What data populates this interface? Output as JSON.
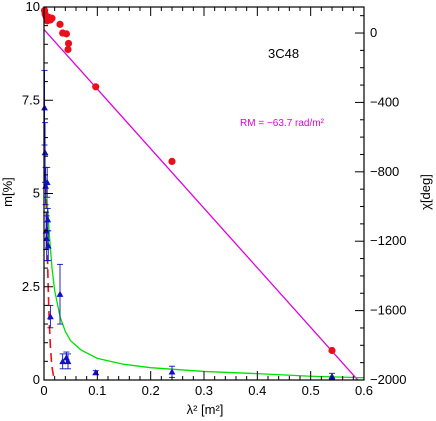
{
  "chart_data": {
    "type": "scatter",
    "title": "",
    "xlabel": "λ² [m²]",
    "ylabel_left": "m[%]",
    "ylabel_right": "χ[deg]",
    "xlim": [
      0,
      0.6
    ],
    "ylim_left": [
      0,
      10
    ],
    "ylim_right": [
      -2000,
      150
    ],
    "x_ticks": [
      0,
      0.1,
      0.2,
      0.3,
      0.4,
      0.5,
      0.6
    ],
    "x_tick_labels": [
      "0",
      "0.1",
      "0.2",
      "0.3",
      "0.4",
      "0.5",
      "0.6"
    ],
    "left_ticks": [
      0,
      2.5,
      5,
      7.5,
      10
    ],
    "left_tick_labels": [
      "0",
      "2.5",
      "5",
      "7.5",
      "10"
    ],
    "right_ticks": [
      0,
      -400,
      -800,
      -1200,
      -1600,
      -2000
    ],
    "right_tick_labels": [
      "0",
      "−400",
      "−800",
      "−1200",
      "−1600",
      "−2000"
    ],
    "grid": false,
    "annotations": {
      "source_name": "3C48",
      "rm_label": "RM = −63.7 rad/m²"
    },
    "series": [
      {
        "axis": "right",
        "style": "points",
        "color": "#e8101c",
        "points": [
          {
            "x": 0.001,
            "y": 130
          },
          {
            "x": 0.002,
            "y": 110
          },
          {
            "x": 0.004,
            "y": 95
          },
          {
            "x": 0.006,
            "y": 70
          },
          {
            "x": 0.009,
            "y": 90
          },
          {
            "x": 0.012,
            "y": 75
          },
          {
            "x": 0.015,
            "y": 85
          },
          {
            "x": 0.03,
            "y": 50
          },
          {
            "x": 0.035,
            "y": 0
          },
          {
            "x": 0.042,
            "y": -5
          },
          {
            "x": 0.046,
            "y": -60
          },
          {
            "x": 0.045,
            "y": -95
          },
          {
            "x": 0.097,
            "y": -310
          },
          {
            "x": 0.24,
            "y": -740
          },
          {
            "x": 0.54,
            "y": -1830
          }
        ]
      },
      {
        "axis": "right",
        "style": "line",
        "color": "#e000e0",
        "points": [
          {
            "x": 0,
            "y": 20
          },
          {
            "x": 0.6,
            "y": -2040
          }
        ]
      },
      {
        "axis": "left",
        "style": "points",
        "color": "#1010c8",
        "points": [
          {
            "x": 0.001,
            "y": 7.3,
            "err": 1.0
          },
          {
            "x": 0.002,
            "y": 6.1,
            "err": 0.8
          },
          {
            "x": 0.003,
            "y": 5.2,
            "err": 0.5
          },
          {
            "x": 0.004,
            "y": 4.0,
            "err": 0.5
          },
          {
            "x": 0.005,
            "y": 3.8,
            "err": 0.6
          },
          {
            "x": 0.006,
            "y": 5.3,
            "err": 0.4
          },
          {
            "x": 0.007,
            "y": 4.3,
            "err": 0.3
          },
          {
            "x": 0.008,
            "y": 3.6,
            "err": 0.4
          },
          {
            "x": 0.012,
            "y": 1.7,
            "err": 0.3
          },
          {
            "x": 0.03,
            "y": 2.3,
            "err": 0.8
          },
          {
            "x": 0.035,
            "y": 0.5,
            "err": 0.2
          },
          {
            "x": 0.042,
            "y": 0.6,
            "err": 0.15
          },
          {
            "x": 0.045,
            "y": 0.5,
            "err": 0.2
          },
          {
            "x": 0.097,
            "y": 0.2,
            "err": 0.05
          },
          {
            "x": 0.24,
            "y": 0.22,
            "err": 0.15
          },
          {
            "x": 0.54,
            "y": 0.1,
            "err": 0.08
          }
        ]
      },
      {
        "axis": "left",
        "style": "line",
        "color": "#00e000",
        "points": [
          {
            "x": 0.002,
            "y": 5.6
          },
          {
            "x": 0.005,
            "y": 5.0
          },
          {
            "x": 0.01,
            "y": 3.9
          },
          {
            "x": 0.015,
            "y": 3.0
          },
          {
            "x": 0.02,
            "y": 2.4
          },
          {
            "x": 0.03,
            "y": 1.7
          },
          {
            "x": 0.04,
            "y": 1.3
          },
          {
            "x": 0.05,
            "y": 1.05
          },
          {
            "x": 0.07,
            "y": 0.8
          },
          {
            "x": 0.1,
            "y": 0.58
          },
          {
            "x": 0.15,
            "y": 0.42
          },
          {
            "x": 0.2,
            "y": 0.33
          },
          {
            "x": 0.3,
            "y": 0.23
          },
          {
            "x": 0.4,
            "y": 0.17
          },
          {
            "x": 0.5,
            "y": 0.1
          },
          {
            "x": 0.6,
            "y": 0.06
          }
        ]
      },
      {
        "axis": "left",
        "style": "dashed",
        "color": "#e8101c",
        "points": [
          {
            "x": 0.002,
            "y": 5.6
          },
          {
            "x": 0.004,
            "y": 4.8
          },
          {
            "x": 0.006,
            "y": 3.6
          },
          {
            "x": 0.008,
            "y": 2.4
          },
          {
            "x": 0.01,
            "y": 1.5
          },
          {
            "x": 0.012,
            "y": 0.9
          },
          {
            "x": 0.014,
            "y": 0.5
          },
          {
            "x": 0.016,
            "y": 0.25
          },
          {
            "x": 0.018,
            "y": 0.1
          },
          {
            "x": 0.02,
            "y": 0
          }
        ]
      }
    ]
  }
}
